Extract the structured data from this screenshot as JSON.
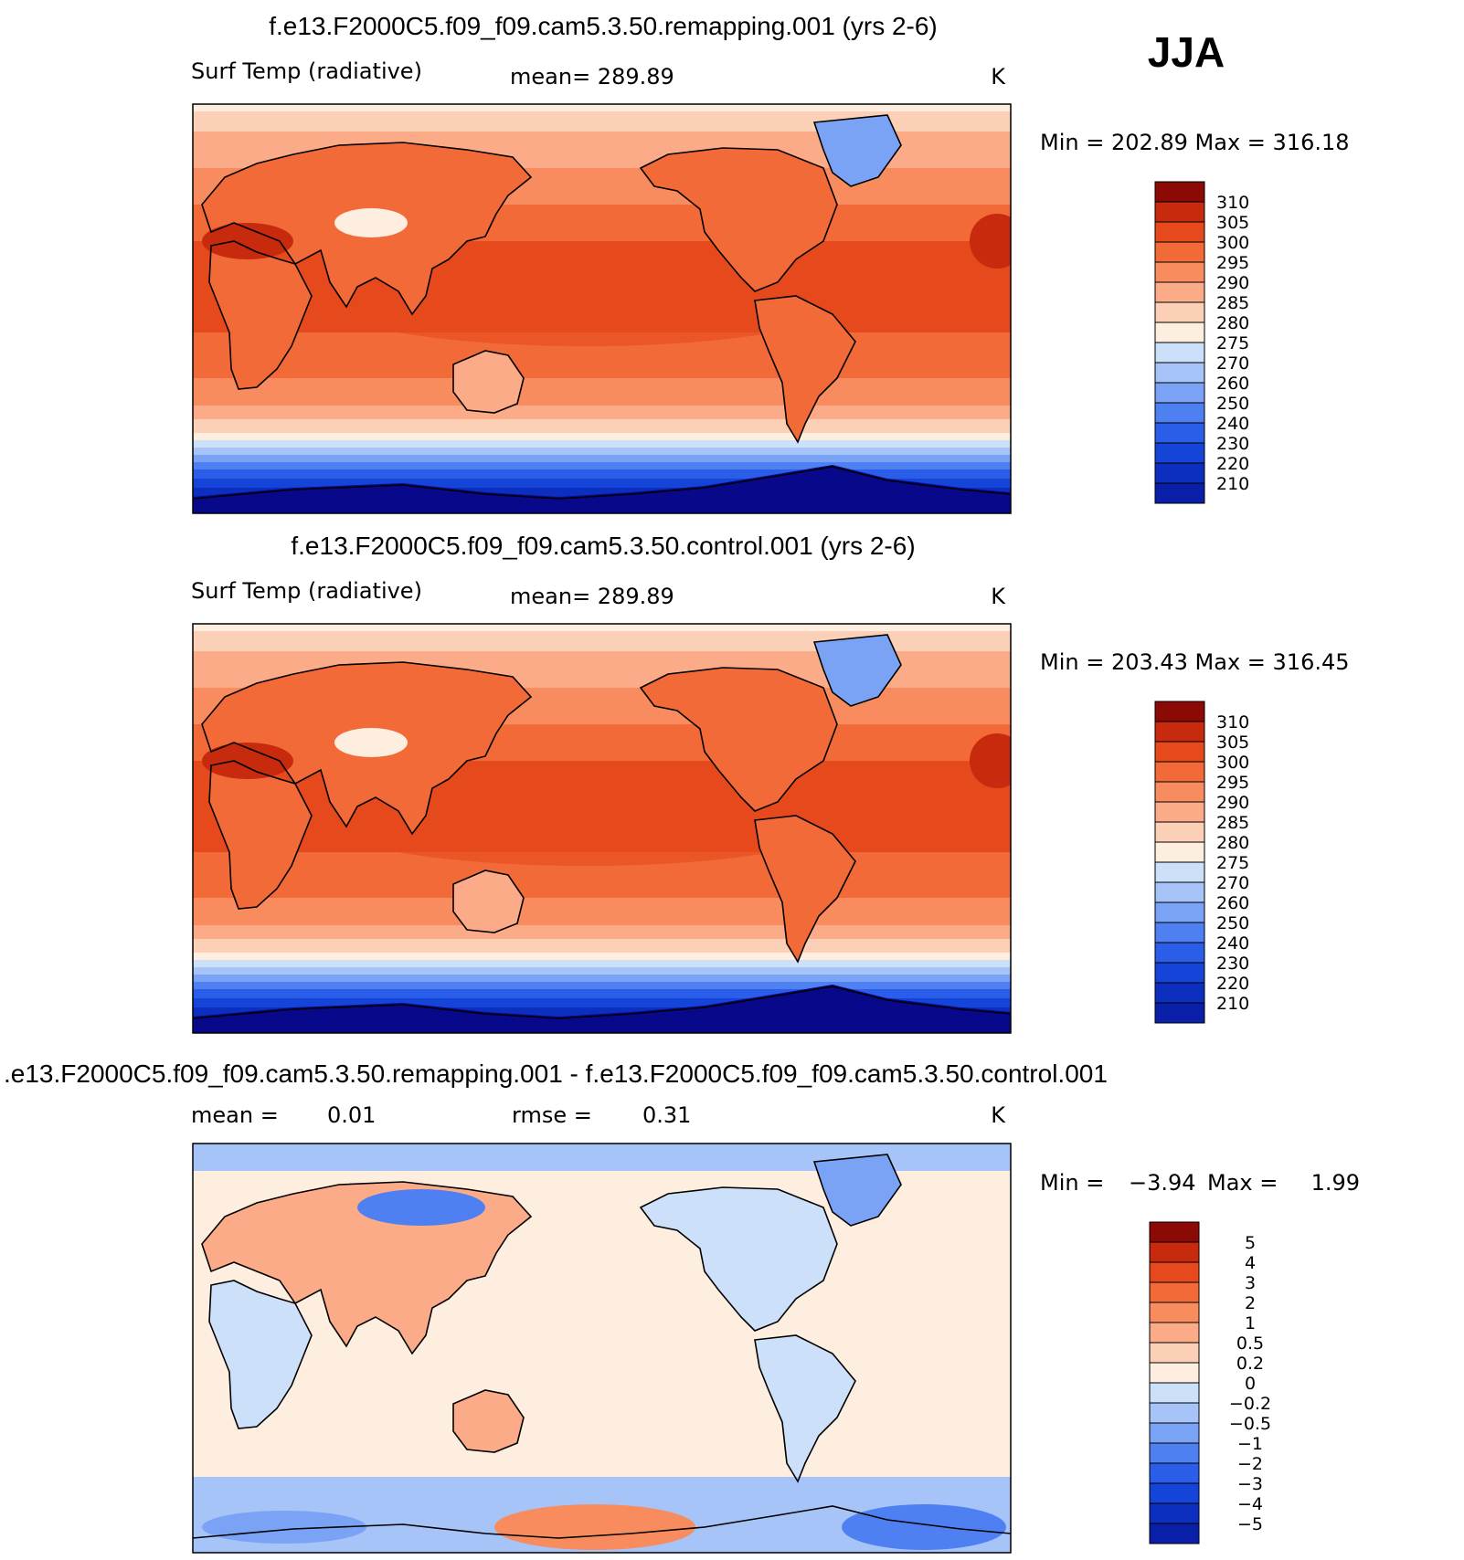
{
  "season": "JJA",
  "colors": {
    "abs_scale": [
      "#08088a",
      "#0a1fa8",
      "#0d2fc0",
      "#1444d8",
      "#2b5ee8",
      "#4f80f2",
      "#7aa3f5",
      "#a6c4f7",
      "#cde0fa",
      "#fdeee0",
      "#fcd0b6",
      "#fbab88",
      "#f98c5e",
      "#f26a38",
      "#e64a1c",
      "#c72a0c",
      "#8b0a06"
    ],
    "diff_scale": [
      "#08088a",
      "#0a1fa8",
      "#0d2fc0",
      "#1444d8",
      "#2b5ee8",
      "#4f80f2",
      "#7aa3f5",
      "#a6c4f7",
      "#cde0fa",
      "#fdeee0",
      "#fcd0b6",
      "#fbab88",
      "#f98c5e",
      "#f26a38",
      "#e64a1c",
      "#c72a0c",
      "#8b0a06"
    ]
  },
  "panels": [
    {
      "title": "f.e13.F2000C5.f09_f09.cam5.3.50.remapping.001 (yrs 2-6)",
      "left_label": "Surf Temp (radiative)",
      "center_label": "mean= 289.89",
      "units": "K",
      "minmax": "Min = 202.89 Max = 316.18"
    },
    {
      "title": "f.e13.F2000C5.f09_f09.cam5.3.50.control.001 (yrs 2-6)",
      "left_label": "Surf Temp (radiative)",
      "center_label": "mean= 289.89",
      "units": "K",
      "minmax": "Min = 203.43 Max = 316.45"
    },
    {
      "title": ".e13.F2000C5.f09_f09.cam5.3.50.remapping.001 - f.e13.F2000C5.f09_f09.cam5.3.50.control.001",
      "left_label": "mean =",
      "left_value": "0.01",
      "center_label": "rmse =",
      "center_value": "0.31",
      "units": "K",
      "minmax_label": "Min =",
      "minmax_min": "−3.94",
      "minmax_max_label": "Max =",
      "minmax_max": "1.99"
    }
  ],
  "chart_data": [
    {
      "type": "heatmap",
      "title": "f.e13.F2000C5.f09_f09.cam5.3.50.remapping.001 (yrs 2-6)",
      "variable": "Surf Temp (radiative)",
      "units": "K",
      "mean": 289.89,
      "min": 202.89,
      "max": 316.18,
      "colorbar_levels": [
        "310",
        "305",
        "300",
        "295",
        "290",
        "285",
        "280",
        "275",
        "270",
        "260",
        "250",
        "240",
        "230",
        "220",
        "210"
      ]
    },
    {
      "type": "heatmap",
      "title": "f.e13.F2000C5.f09_f09.cam5.3.50.control.001 (yrs 2-6)",
      "variable": "Surf Temp (radiative)",
      "units": "K",
      "mean": 289.89,
      "min": 203.43,
      "max": 316.45,
      "colorbar_levels": [
        "310",
        "305",
        "300",
        "295",
        "290",
        "285",
        "280",
        "275",
        "270",
        "260",
        "250",
        "240",
        "230",
        "220",
        "210"
      ]
    },
    {
      "type": "heatmap",
      "title": ".e13.F2000C5.f09_f09.cam5.3.50.remapping.001 - f.e13.F2000C5.f09_f09.cam5.3.50.control.001",
      "units": "K",
      "mean": 0.01,
      "rmse": 0.31,
      "min": -3.94,
      "max": 1.99,
      "colorbar_levels": [
        "5",
        "4",
        "3",
        "2",
        "1",
        "0.5",
        "0.2",
        "0",
        "−0.2",
        "−0.5",
        "−1",
        "−2",
        "−3",
        "−4",
        "−5"
      ]
    }
  ]
}
